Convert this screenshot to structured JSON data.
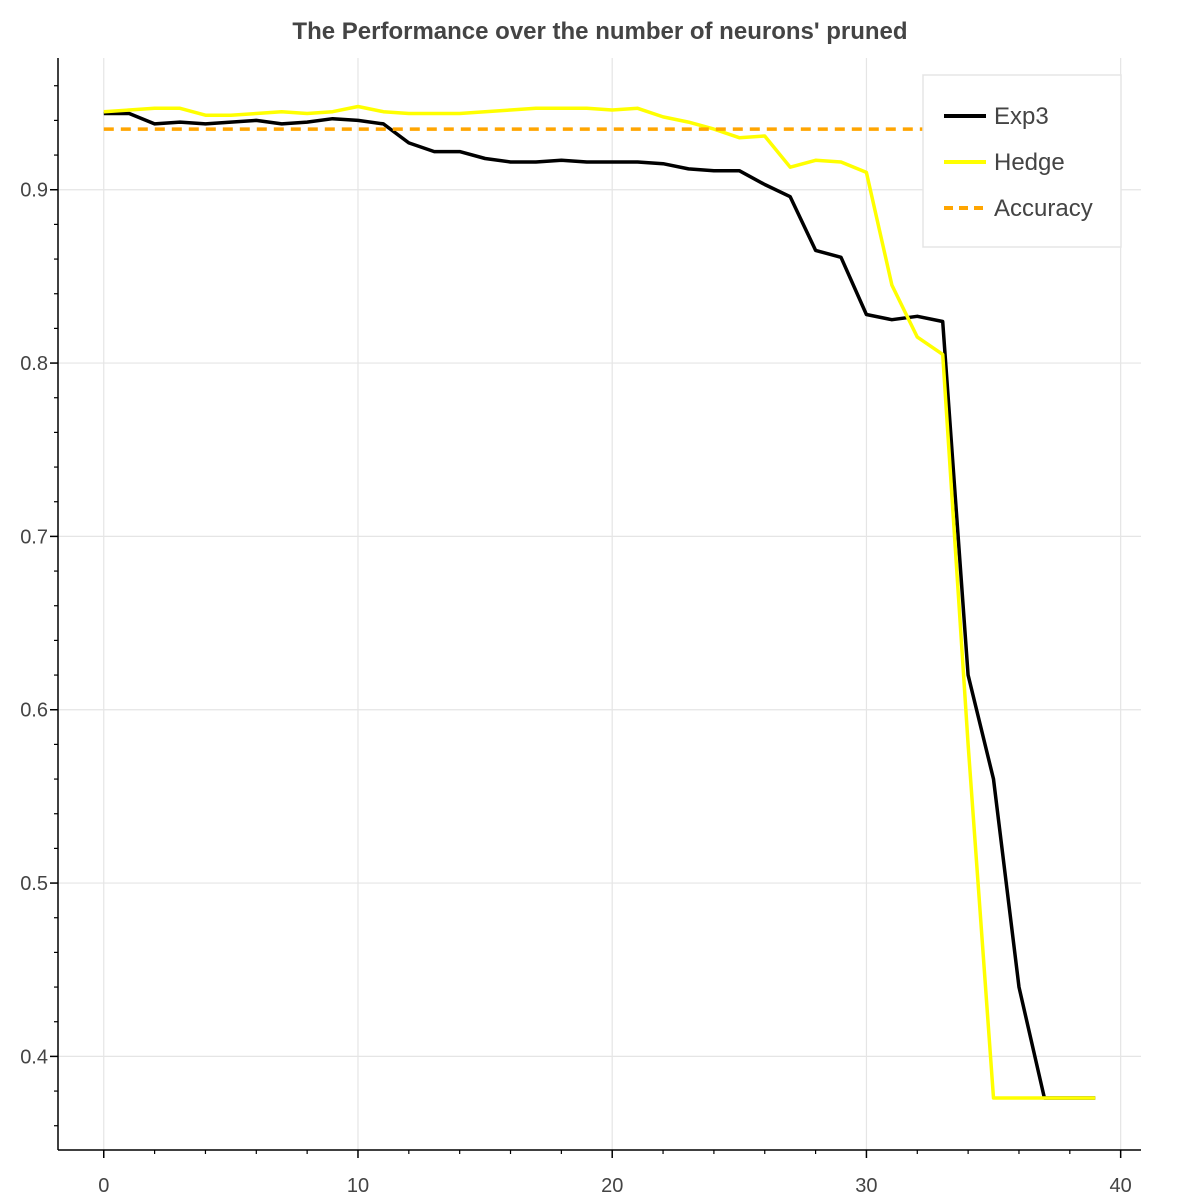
{
  "chart_data": {
    "type": "line",
    "title": "The Performance over the number of neurons' pruned",
    "xlabel": "",
    "ylabel": "",
    "xlim": [
      -1.8,
      40.8
    ],
    "ylim": [
      0.346,
      0.976
    ],
    "xticks": [
      0,
      10,
      20,
      30,
      40
    ],
    "xtick_labels": [
      "0",
      "10",
      "20",
      "30",
      "40"
    ],
    "yticks": [
      0.4,
      0.5,
      0.6,
      0.7,
      0.8,
      0.9
    ],
    "ytick_labels": [
      "0.4",
      "0.5",
      "0.6",
      "0.7",
      "0.8",
      "0.9"
    ],
    "grid": true,
    "legend_position": "top-right",
    "series": [
      {
        "name": "Exp3",
        "color": "#000000",
        "style": "solid",
        "x": [
          0,
          1,
          2,
          3,
          4,
          5,
          6,
          7,
          8,
          9,
          10,
          11,
          12,
          13,
          14,
          15,
          16,
          17,
          18,
          19,
          20,
          21,
          22,
          23,
          24,
          25,
          26,
          27,
          28,
          29,
          30,
          31,
          32,
          33,
          34,
          35,
          36,
          37,
          38,
          39
        ],
        "y": [
          0.944,
          0.944,
          0.938,
          0.939,
          0.938,
          0.939,
          0.94,
          0.938,
          0.939,
          0.941,
          0.94,
          0.938,
          0.927,
          0.922,
          0.922,
          0.918,
          0.916,
          0.916,
          0.917,
          0.916,
          0.916,
          0.916,
          0.915,
          0.912,
          0.911,
          0.911,
          0.903,
          0.896,
          0.865,
          0.861,
          0.828,
          0.825,
          0.827,
          0.824,
          0.62,
          0.56,
          0.44,
          0.376,
          0.376,
          0.376
        ]
      },
      {
        "name": "Hedge",
        "color": "#ffff00",
        "style": "solid",
        "x": [
          0,
          1,
          2,
          3,
          4,
          5,
          6,
          7,
          8,
          9,
          10,
          11,
          12,
          13,
          14,
          15,
          16,
          17,
          18,
          19,
          20,
          21,
          22,
          23,
          24,
          25,
          26,
          27,
          28,
          29,
          30,
          31,
          32,
          33,
          34,
          35,
          36,
          37,
          38,
          39
        ],
        "y": [
          0.945,
          0.946,
          0.947,
          0.947,
          0.943,
          0.943,
          0.944,
          0.945,
          0.944,
          0.945,
          0.948,
          0.945,
          0.944,
          0.944,
          0.944,
          0.945,
          0.946,
          0.947,
          0.947,
          0.947,
          0.946,
          0.947,
          0.942,
          0.939,
          0.935,
          0.93,
          0.931,
          0.913,
          0.917,
          0.916,
          0.91,
          0.845,
          0.815,
          0.805,
          0.58,
          0.376,
          0.376,
          0.376,
          0.376,
          0.376
        ]
      },
      {
        "name": "Accuracy",
        "color": "#ffa500",
        "style": "dashed",
        "x": [
          0,
          39
        ],
        "y": [
          0.935,
          0.935
        ]
      }
    ]
  }
}
